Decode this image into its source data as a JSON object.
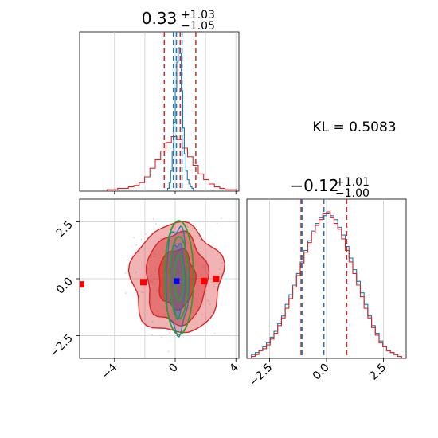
{
  "kl_label": "KL = 0.5083",
  "colors": {
    "red": "#d62728",
    "blue": "#1f77b4",
    "green": "#2ca02c",
    "marker_blue": "#0000ff",
    "marker_red": "#ff0000"
  },
  "chart_data": [
    {
      "type": "histogram",
      "panel": "top-left marginal",
      "title": {
        "base": "0.33",
        "sup": "+1.03",
        "sub": "−1.05"
      },
      "xlim": [
        -6.3,
        4.2
      ],
      "xticks": [
        -4,
        0,
        4
      ],
      "xgrid": [
        -4,
        -2,
        0,
        2,
        4
      ],
      "series": [
        {
          "color": "#1f77b4",
          "x_range": [
            -0.5,
            1.2
          ],
          "counts": [
            2,
            6,
            14,
            28,
            48,
            72,
            90,
            100,
            96,
            70,
            44,
            26,
            14,
            8,
            5,
            3,
            2
          ]
        },
        {
          "color": "#d62728",
          "x_range": [
            -4.5,
            4.0
          ],
          "counts": [
            1,
            1,
            2,
            2,
            3,
            4,
            6,
            10,
            16,
            22,
            28,
            34,
            38,
            36,
            30,
            24,
            18,
            12,
            8,
            5,
            3,
            2,
            1,
            1
          ]
        }
      ],
      "red_quantiles": [
        -0.72,
        0.33,
        1.36
      ],
      "blue_quantiles": [
        -0.12,
        0.08,
        0.45
      ]
    },
    {
      "type": "2d-density",
      "panel": "bottom-left joint",
      "xlim": [
        -6.3,
        4.2
      ],
      "ylim": [
        -3.5,
        3.5
      ],
      "xticks": [
        -4,
        0,
        4
      ],
      "yticks": [
        -2.5,
        0.0,
        2.5
      ],
      "ytick_labels": [
        "−2.5",
        "0.0",
        "2.5"
      ],
      "xtick_labels": [
        "−4",
        "0",
        "4"
      ],
      "xgrid": [
        -4,
        -2,
        0,
        2,
        4
      ],
      "ygrid": [
        -2.5,
        0,
        2.5
      ],
      "red_markers": [
        [
          -6.2,
          -0.25
        ],
        [
          -2.1,
          -0.15
        ],
        [
          1.9,
          -0.1
        ],
        [
          2.7,
          0.0
        ]
      ],
      "blue_marker": [
        0.1,
        -0.1
      ],
      "red_contours": [
        {
          "cx": 0.1,
          "cy": 0.0,
          "rx": 3.0,
          "ry": 2.4
        },
        {
          "cx": 0.1,
          "cy": 0.0,
          "rx": 2.0,
          "ry": 2.0
        },
        {
          "cx": 0.1,
          "cy": 0.0,
          "rx": 1.2,
          "ry": 1.3
        }
      ],
      "blue_contours": [
        {
          "cx": 0.15,
          "cy": -0.05,
          "rx": 0.75,
          "ry": 2.3
        },
        {
          "cx": 0.15,
          "cy": -0.05,
          "rx": 0.5,
          "ry": 1.6
        }
      ],
      "green_contours": [
        {
          "cx": 0.25,
          "cy": 0.05,
          "rx": 0.95,
          "ry": 2.5
        },
        {
          "cx": 0.25,
          "cy": 0.05,
          "rx": 0.6,
          "ry": 1.8
        },
        {
          "cx": 0.25,
          "cy": 0.05,
          "rx": 0.3,
          "ry": 1.0
        }
      ]
    },
    {
      "type": "histogram",
      "panel": "bottom-right marginal",
      "title": {
        "base": "−0.12",
        "sup": "+1.01",
        "sub": "−1.00"
      },
      "xlim": [
        -3.5,
        3.5
      ],
      "xticks": [
        -2.5,
        0.0,
        2.5
      ],
      "xtick_labels": [
        "−2.5",
        "0.0",
        "2.5"
      ],
      "xgrid": [
        -2.5,
        0,
        2.5
      ],
      "series": [
        {
          "color": "#1f77b4",
          "x_range": [
            -3.3,
            3.3
          ],
          "counts": [
            2,
            3,
            4,
            6,
            8,
            11,
            14,
            18,
            22,
            28,
            33,
            38,
            44,
            50,
            56,
            61,
            66,
            70,
            73,
            74,
            75,
            74,
            72,
            68,
            64,
            58,
            52,
            46,
            40,
            34,
            28,
            22,
            17,
            13,
            9,
            6,
            4,
            3,
            2,
            1
          ]
        },
        {
          "color": "#d62728",
          "x_range": [
            -3.3,
            3.3
          ],
          "counts": [
            1,
            2,
            4,
            5,
            7,
            10,
            13,
            17,
            21,
            26,
            31,
            37,
            43,
            49,
            55,
            60,
            65,
            69,
            72,
            75,
            76,
            73,
            70,
            67,
            62,
            56,
            50,
            44,
            38,
            32,
            26,
            21,
            16,
            12,
            8,
            6,
            4,
            3,
            2,
            1
          ]
        }
      ],
      "red_quantiles": [
        -1.12,
        -0.12,
        0.89
      ],
      "blue_quantiles": [
        -1.08,
        -0.12
      ]
    }
  ]
}
